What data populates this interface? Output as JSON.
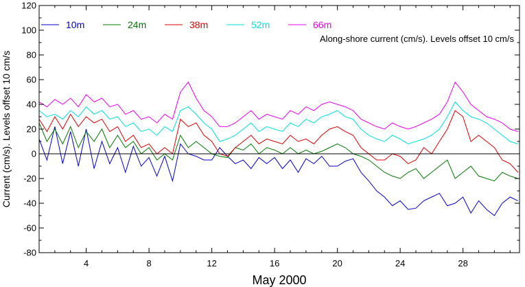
{
  "chart_data": {
    "type": "line",
    "title": "",
    "xlabel": "May 2000",
    "ylabel": "Current (cm/s). Levels offset 10 cm/s",
    "annotation": "Along-shore current (cm/s). Levels offset 10 cm/s",
    "xlim": [
      1,
      31.6
    ],
    "ylim": [
      -80,
      120
    ],
    "x_ticks": [
      4,
      8,
      12,
      16,
      20,
      24,
      28
    ],
    "x_tick_labels": [
      "4",
      "8",
      "12",
      "16",
      "20",
      "24",
      "28"
    ],
    "y_ticks": [
      -80,
      -60,
      -40,
      -20,
      0,
      20,
      40,
      60,
      80,
      100,
      120
    ],
    "y_tick_labels": [
      "-80",
      "-60",
      "-40",
      "-20",
      "0",
      "20",
      "40",
      "60",
      "80",
      "100",
      "120"
    ],
    "zero_line": true,
    "grid": false,
    "legend_position": "top-left",
    "series": [
      {
        "name": "10m",
        "color": "#0000cc",
        "x": [
          1,
          1.5,
          2,
          2.5,
          3,
          3.5,
          4,
          4.5,
          5,
          5.5,
          6,
          6.5,
          7,
          7.5,
          8,
          8.5,
          9,
          9.5,
          10,
          10.5,
          11,
          11.5,
          12,
          12.5,
          13,
          13.5,
          14,
          14.5,
          15,
          15.5,
          16,
          16.5,
          17,
          17.5,
          18,
          18.5,
          19,
          19.5,
          20,
          20.5,
          21,
          21.5,
          22,
          22.5,
          23,
          23.5,
          24,
          24.5,
          25,
          25.5,
          26,
          26.5,
          27,
          27.5,
          28,
          28.5,
          29,
          29.5,
          30,
          30.5,
          31,
          31.5
        ],
        "y": [
          12,
          -5,
          22,
          -8,
          18,
          -10,
          20,
          -12,
          10,
          -8,
          5,
          -15,
          6,
          -10,
          -3,
          -18,
          -2,
          -22,
          8,
          0,
          -2,
          -5,
          -5,
          5,
          -2,
          -8,
          -5,
          -12,
          -3,
          -8,
          -3,
          -12,
          -5,
          -15,
          -4,
          -8,
          -2,
          -10,
          -10,
          -6,
          -4,
          -15,
          -22,
          -30,
          -35,
          -42,
          -38,
          -45,
          -44,
          -38,
          -35,
          -32,
          -42,
          -40,
          -35,
          -48,
          -38,
          -45,
          -50,
          -40,
          -35,
          -38
        ]
      },
      {
        "name": "24m",
        "color": "#007700",
        "x": [
          1,
          1.5,
          2,
          2.5,
          3,
          3.5,
          4,
          4.5,
          5,
          5.5,
          6,
          6.5,
          7,
          7.5,
          8,
          8.5,
          9,
          9.5,
          10,
          10.5,
          11,
          11.5,
          12,
          12.5,
          13,
          13.5,
          14,
          14.5,
          15,
          15.5,
          16,
          16.5,
          17,
          17.5,
          18,
          18.5,
          19,
          19.5,
          20,
          20.5,
          21,
          21.5,
          22,
          22.5,
          23,
          23.5,
          24,
          24.5,
          25,
          25.5,
          26,
          26.5,
          27,
          27.5,
          28,
          28.5,
          29,
          29.5,
          30,
          30.5,
          31,
          31.5
        ],
        "y": [
          25,
          10,
          20,
          8,
          22,
          5,
          18,
          10,
          20,
          5,
          15,
          5,
          10,
          0,
          5,
          -5,
          0,
          -5,
          15,
          5,
          10,
          5,
          0,
          -2,
          -3,
          5,
          3,
          8,
          0,
          5,
          3,
          0,
          5,
          0,
          3,
          0,
          2,
          5,
          8,
          5,
          0,
          -2,
          -5,
          -10,
          -15,
          -18,
          -20,
          -15,
          -12,
          -20,
          -15,
          -10,
          -5,
          -20,
          -15,
          -10,
          -18,
          -20,
          -22,
          -15,
          -18,
          -20
        ]
      },
      {
        "name": "38m",
        "color": "#dd0000",
        "x": [
          1,
          1.5,
          2,
          2.5,
          3,
          3.5,
          4,
          4.5,
          5,
          5.5,
          6,
          6.5,
          7,
          7.5,
          8,
          8.5,
          9,
          9.5,
          10,
          10.5,
          11,
          11.5,
          12,
          12.5,
          13,
          13.5,
          14,
          14.5,
          15,
          15.5,
          16,
          16.5,
          17,
          17.5,
          18,
          18.5,
          19,
          19.5,
          20,
          20.5,
          21,
          21.5,
          22,
          22.5,
          23,
          23.5,
          24,
          24.5,
          25,
          25.5,
          26,
          26.5,
          27,
          27.5,
          28,
          28.5,
          29,
          29.5,
          30,
          30.5,
          31,
          31.5
        ],
        "y": [
          28,
          18,
          30,
          20,
          32,
          22,
          30,
          25,
          28,
          18,
          22,
          10,
          15,
          5,
          8,
          0,
          5,
          0,
          28,
          22,
          25,
          15,
          10,
          0,
          -2,
          5,
          10,
          15,
          8,
          12,
          10,
          8,
          15,
          10,
          12,
          8,
          15,
          20,
          22,
          18,
          15,
          5,
          0,
          -5,
          -5,
          0,
          -2,
          -8,
          -5,
          5,
          0,
          10,
          20,
          35,
          30,
          10,
          15,
          10,
          5,
          -5,
          -8,
          -15
        ]
      },
      {
        "name": "52m",
        "color": "#00e0e0",
        "x": [
          1,
          1.5,
          2,
          2.5,
          3,
          3.5,
          4,
          4.5,
          5,
          5.5,
          6,
          6.5,
          7,
          7.5,
          8,
          8.5,
          9,
          9.5,
          10,
          10.5,
          11,
          11.5,
          12,
          12.5,
          13,
          13.5,
          14,
          14.5,
          15,
          15.5,
          16,
          16.5,
          17,
          17.5,
          18,
          18.5,
          19,
          19.5,
          20,
          20.5,
          21,
          21.5,
          22,
          22.5,
          23,
          23.5,
          24,
          24.5,
          25,
          25.5,
          26,
          26.5,
          27,
          27.5,
          28,
          28.5,
          29,
          29.5,
          30,
          30.5,
          31,
          31.5
        ],
        "y": [
          35,
          30,
          32,
          28,
          35,
          30,
          38,
          32,
          35,
          28,
          30,
          22,
          25,
          18,
          20,
          15,
          22,
          18,
          35,
          38,
          32,
          25,
          20,
          10,
          12,
          15,
          20,
          25,
          18,
          22,
          20,
          18,
          25,
          22,
          28,
          25,
          30,
          32,
          35,
          30,
          28,
          20,
          15,
          12,
          10,
          15,
          12,
          8,
          10,
          12,
          15,
          20,
          30,
          42,
          35,
          30,
          28,
          25,
          20,
          15,
          10,
          8
        ]
      },
      {
        "name": "66m",
        "color": "#ee00ee",
        "x": [
          1,
          1.5,
          2,
          2.5,
          3,
          3.5,
          4,
          4.5,
          5,
          5.5,
          6,
          6.5,
          7,
          7.5,
          8,
          8.5,
          9,
          9.5,
          10,
          10.5,
          11,
          11.5,
          12,
          12.5,
          13,
          13.5,
          14,
          14.5,
          15,
          15.5,
          16,
          16.5,
          17,
          17.5,
          18,
          18.5,
          19,
          19.5,
          20,
          20.5,
          21,
          21.5,
          22,
          22.5,
          23,
          23.5,
          24,
          24.5,
          25,
          25.5,
          26,
          26.5,
          27,
          27.5,
          28,
          28.5,
          29,
          29.5,
          30,
          30.5,
          31,
          31.5
        ],
        "y": [
          42,
          38,
          44,
          40,
          45,
          38,
          48,
          42,
          45,
          38,
          40,
          32,
          35,
          28,
          30,
          25,
          32,
          28,
          50,
          58,
          45,
          35,
          30,
          22,
          22,
          25,
          30,
          35,
          28,
          32,
          30,
          28,
          35,
          32,
          38,
          35,
          40,
          42,
          40,
          38,
          35,
          28,
          25,
          22,
          20,
          25,
          22,
          20,
          22,
          25,
          28,
          32,
          42,
          58,
          50,
          40,
          35,
          30,
          28,
          25,
          20,
          18
        ]
      }
    ]
  }
}
